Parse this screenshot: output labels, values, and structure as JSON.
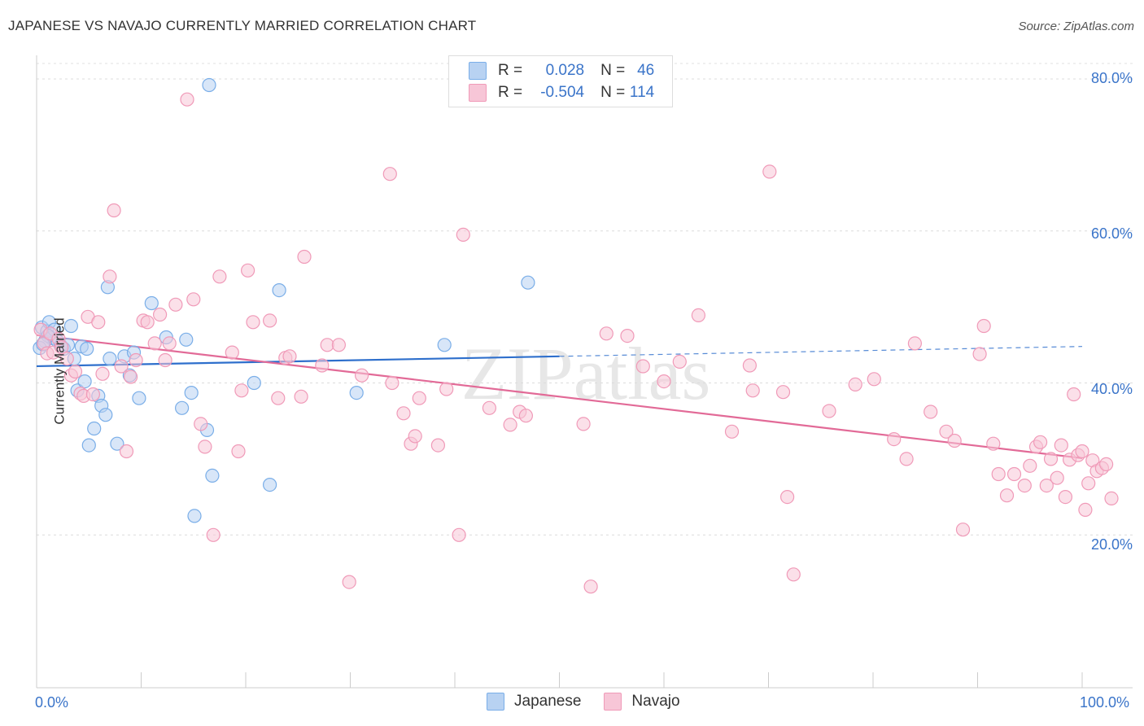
{
  "chart_data": {
    "type": "scatter",
    "title": "JAPANESE VS NAVAJO CURRENTLY MARRIED CORRELATION CHART",
    "source": "Source: ZipAtlas.com",
    "xlabel": "",
    "ylabel": "Currently Married",
    "xlim": [
      0,
      100
    ],
    "ylim": [
      0,
      82
    ],
    "x_tick_labels": [
      "0.0%",
      "100.0%"
    ],
    "y_ticks": [
      20,
      40,
      60,
      80
    ],
    "y_tick_labels": [
      "20.0%",
      "40.0%",
      "60.0%",
      "80.0%"
    ],
    "watermark": "ZIPatlas",
    "legend": {
      "rows": [
        {
          "r_label": "R =",
          "r_value": "0.028",
          "n_label": "N =",
          "n_value": "46"
        },
        {
          "r_label": "R =",
          "r_value": "-0.504",
          "n_label": "N =",
          "n_value": "114"
        }
      ]
    },
    "series": [
      {
        "name": "Japanese",
        "color": "#7aaee8",
        "fill": "#b8d2f2",
        "trend": {
          "x0": 0,
          "y0": 42.2,
          "x1": 50,
          "y1": 43.5,
          "dash_x1": 100,
          "dash_y1": 44.8,
          "color": "#2e6fcc"
        },
        "points": [
          [
            0.5,
            47.3
          ],
          [
            0.8,
            45.5
          ],
          [
            1.0,
            46.8
          ],
          [
            1.2,
            48.0
          ],
          [
            1.4,
            45.9
          ],
          [
            1.7,
            47.0
          ],
          [
            2.0,
            45.5
          ],
          [
            2.3,
            44.9
          ],
          [
            2.6,
            44.5
          ],
          [
            3.0,
            45.0
          ],
          [
            3.3,
            47.5
          ],
          [
            3.6,
            43.2
          ],
          [
            3.9,
            39.0
          ],
          [
            4.3,
            44.8
          ],
          [
            4.6,
            40.2
          ],
          [
            4.8,
            44.5
          ],
          [
            5.0,
            31.8
          ],
          [
            5.5,
            34.0
          ],
          [
            5.9,
            38.3
          ],
          [
            6.2,
            37.0
          ],
          [
            6.6,
            35.8
          ],
          [
            6.8,
            52.6
          ],
          [
            7.0,
            43.2
          ],
          [
            7.7,
            32.0
          ],
          [
            8.4,
            43.5
          ],
          [
            8.9,
            41.0
          ],
          [
            9.3,
            44.0
          ],
          [
            9.8,
            38.0
          ],
          [
            11.0,
            50.5
          ],
          [
            12.4,
            46.0
          ],
          [
            13.9,
            36.7
          ],
          [
            14.3,
            45.7
          ],
          [
            14.8,
            38.7
          ],
          [
            15.1,
            22.5
          ],
          [
            16.3,
            33.8
          ],
          [
            16.8,
            27.8
          ],
          [
            16.5,
            79.2
          ],
          [
            20.8,
            40.0
          ],
          [
            22.3,
            26.6
          ],
          [
            23.2,
            52.2
          ],
          [
            30.6,
            38.7
          ],
          [
            39.0,
            45.0
          ],
          [
            47.0,
            53.2
          ],
          [
            0.3,
            44.6
          ],
          [
            1.1,
            46.2
          ],
          [
            0.6,
            45.1
          ]
        ]
      },
      {
        "name": "Navajo",
        "color": "#f09ab8",
        "fill": "#f7c6d7",
        "trend": {
          "x0": 0,
          "y0": 46.3,
          "x1": 100,
          "y1": 30.1,
          "color": "#e26a97"
        },
        "points": [
          [
            0.4,
            47.0
          ],
          [
            0.7,
            45.2
          ],
          [
            1.0,
            43.9
          ],
          [
            1.3,
            46.5
          ],
          [
            1.6,
            44.0
          ],
          [
            2.1,
            45.8
          ],
          [
            2.4,
            44.7
          ],
          [
            2.9,
            43.2
          ],
          [
            3.3,
            41.0
          ],
          [
            3.7,
            41.5
          ],
          [
            4.2,
            38.6
          ],
          [
            4.5,
            38.3
          ],
          [
            4.9,
            48.7
          ],
          [
            5.4,
            38.5
          ],
          [
            5.9,
            48.0
          ],
          [
            6.3,
            41.2
          ],
          [
            7.0,
            54.0
          ],
          [
            7.4,
            62.7
          ],
          [
            8.1,
            42.2
          ],
          [
            8.6,
            31.0
          ],
          [
            9.0,
            40.8
          ],
          [
            9.5,
            43.0
          ],
          [
            10.2,
            48.2
          ],
          [
            10.6,
            48.0
          ],
          [
            11.3,
            45.2
          ],
          [
            11.8,
            49.0
          ],
          [
            12.3,
            43.0
          ],
          [
            12.7,
            45.2
          ],
          [
            13.3,
            50.3
          ],
          [
            14.4,
            77.3
          ],
          [
            15.0,
            51.0
          ],
          [
            15.7,
            34.6
          ],
          [
            16.1,
            31.6
          ],
          [
            16.9,
            20.0
          ],
          [
            17.5,
            54.0
          ],
          [
            18.7,
            44.0
          ],
          [
            19.3,
            31.0
          ],
          [
            19.6,
            39.0
          ],
          [
            20.2,
            54.8
          ],
          [
            20.7,
            48.0
          ],
          [
            22.3,
            48.2
          ],
          [
            23.1,
            38.0
          ],
          [
            23.8,
            43.3
          ],
          [
            24.2,
            43.5
          ],
          [
            25.3,
            38.2
          ],
          [
            25.6,
            56.6
          ],
          [
            27.3,
            42.3
          ],
          [
            27.8,
            45.0
          ],
          [
            28.9,
            45.0
          ],
          [
            29.9,
            13.8
          ],
          [
            31.1,
            41.0
          ],
          [
            33.8,
            67.5
          ],
          [
            34.0,
            40.0
          ],
          [
            35.1,
            36.0
          ],
          [
            35.8,
            32.0
          ],
          [
            36.2,
            33.0
          ],
          [
            36.6,
            38.0
          ],
          [
            38.4,
            31.8
          ],
          [
            39.2,
            39.2
          ],
          [
            40.4,
            20.0
          ],
          [
            40.8,
            59.5
          ],
          [
            43.3,
            36.7
          ],
          [
            45.3,
            34.5
          ],
          [
            46.2,
            36.2
          ],
          [
            46.8,
            35.7
          ],
          [
            52.3,
            34.6
          ],
          [
            53.0,
            13.2
          ],
          [
            54.5,
            46.5
          ],
          [
            56.5,
            46.2
          ],
          [
            58.0,
            42.2
          ],
          [
            60.0,
            40.2
          ],
          [
            61.5,
            42.8
          ],
          [
            63.3,
            48.9
          ],
          [
            66.5,
            33.6
          ],
          [
            68.2,
            42.3
          ],
          [
            68.5,
            39.0
          ],
          [
            70.1,
            67.8
          ],
          [
            71.4,
            38.8
          ],
          [
            71.8,
            25.0
          ],
          [
            72.4,
            14.8
          ],
          [
            75.8,
            36.3
          ],
          [
            78.3,
            39.8
          ],
          [
            80.1,
            40.5
          ],
          [
            82.0,
            32.6
          ],
          [
            83.2,
            30.0
          ],
          [
            84.0,
            45.2
          ],
          [
            85.5,
            36.2
          ],
          [
            87.0,
            33.6
          ],
          [
            87.8,
            32.4
          ],
          [
            88.6,
            20.7
          ],
          [
            90.2,
            43.8
          ],
          [
            90.6,
            47.5
          ],
          [
            91.5,
            32.0
          ],
          [
            92.0,
            28.0
          ],
          [
            92.8,
            25.2
          ],
          [
            93.5,
            28.0
          ],
          [
            94.5,
            26.5
          ],
          [
            95.0,
            29.1
          ],
          [
            95.6,
            31.6
          ],
          [
            96.0,
            32.2
          ],
          [
            96.6,
            26.5
          ],
          [
            97.0,
            30.0
          ],
          [
            97.6,
            27.5
          ],
          [
            98.0,
            31.8
          ],
          [
            98.4,
            25.0
          ],
          [
            98.8,
            29.9
          ],
          [
            99.2,
            38.5
          ],
          [
            99.6,
            30.5
          ],
          [
            100.0,
            31.0
          ],
          [
            100.3,
            23.3
          ],
          [
            100.6,
            26.8
          ],
          [
            101.0,
            29.8
          ],
          [
            101.4,
            28.4
          ],
          [
            101.9,
            28.8
          ],
          [
            102.3,
            29.3
          ],
          [
            102.8,
            24.8
          ]
        ]
      }
    ]
  },
  "colors": {
    "accent": "#3a74c9",
    "grid": "#d7d7d7",
    "japanese": "#b8d2f2",
    "navajo": "#f7c6d7"
  }
}
